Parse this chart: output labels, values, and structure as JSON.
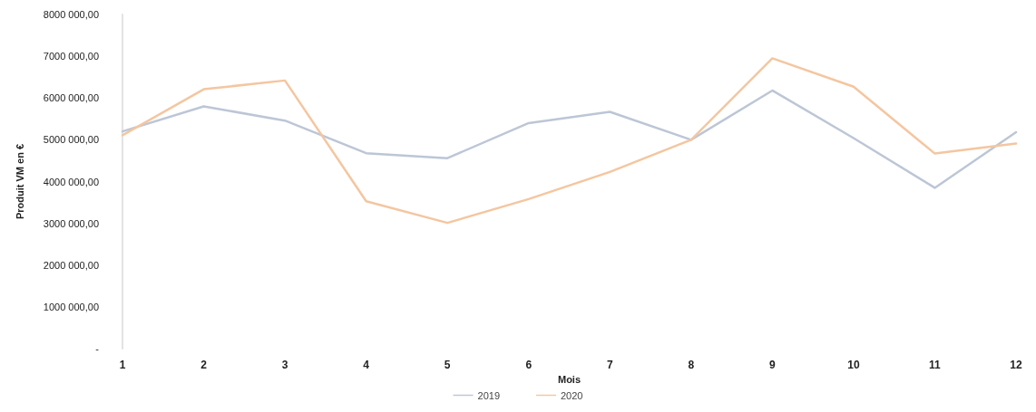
{
  "chart_data": {
    "type": "line",
    "xlabel": "Mois",
    "ylabel": "Produit VM en €",
    "categories": [
      "1",
      "2",
      "3",
      "4",
      "5",
      "6",
      "7",
      "8",
      "9",
      "10",
      "11",
      "12"
    ],
    "series": [
      {
        "name": "2019",
        "color": "#bcc6d6",
        "values": [
          5200000,
          5800000,
          5460000,
          4680000,
          4560000,
          5400000,
          5670000,
          5000000,
          6180000,
          5040000,
          3850000,
          5180000
        ]
      },
      {
        "name": "2020",
        "color": "#f4c6a0",
        "values": [
          5110000,
          6210000,
          6420000,
          3530000,
          3010000,
          3580000,
          4230000,
          5000000,
          6950000,
          6270000,
          4670000,
          4910000
        ]
      }
    ],
    "ylim": [
      0,
      8000000
    ],
    "yticks": [
      {
        "value": 0,
        "label": "-"
      },
      {
        "value": 1000000,
        "label": "1000 000,00"
      },
      {
        "value": 2000000,
        "label": "2000 000,00"
      },
      {
        "value": 3000000,
        "label": "3000 000,00"
      },
      {
        "value": 4000000,
        "label": "4000 000,00"
      },
      {
        "value": 5000000,
        "label": "5000 000,00"
      },
      {
        "value": 6000000,
        "label": "6000 000,00"
      },
      {
        "value": 7000000,
        "label": "7000 000,00"
      },
      {
        "value": 8000000,
        "label": "8000 000,00"
      }
    ],
    "grid": false,
    "legend": "bottom",
    "marker": "none",
    "line_style": "solid"
  }
}
